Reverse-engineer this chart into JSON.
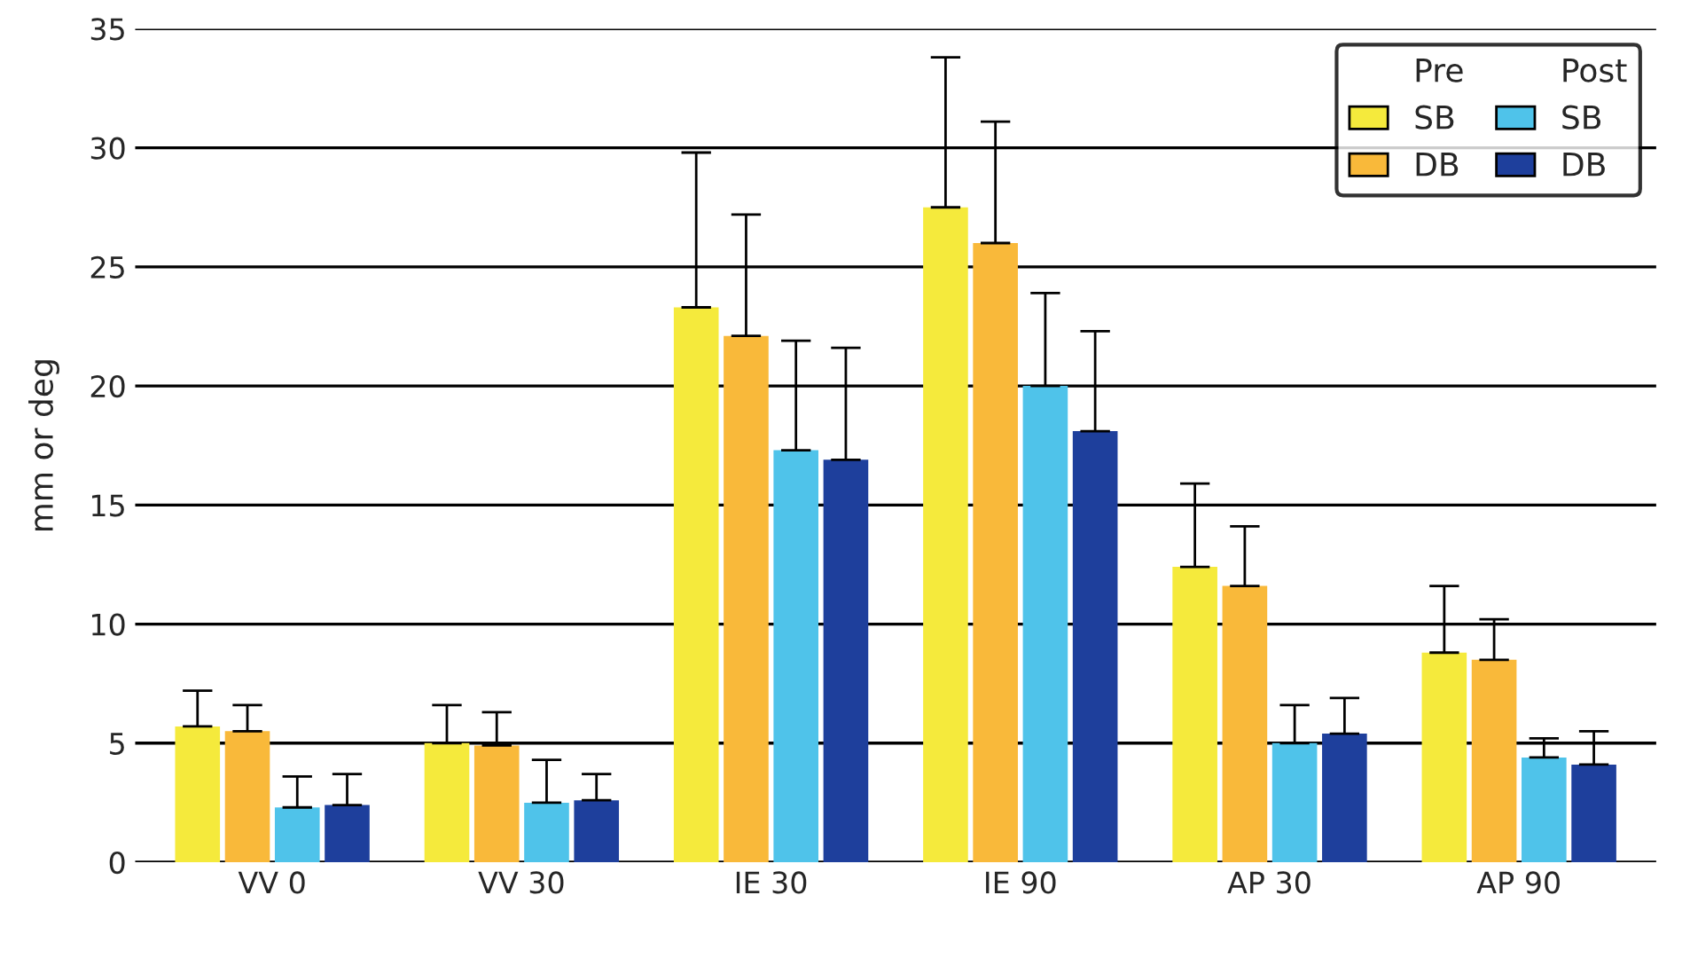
{
  "chart_data": {
    "type": "bar",
    "ylabel": "mm or deg",
    "categories": [
      "VV 0",
      "VV 30",
      "IE 30",
      "IE 90",
      "AP 30",
      "AP 90"
    ],
    "series": [
      {
        "name": "SB",
        "color": "#f5ea3c",
        "values": [
          5.7,
          5.0,
          23.3,
          27.5,
          12.4,
          8.8
        ],
        "errors": [
          [
            5.7,
            7.2
          ],
          [
            5.0,
            6.6
          ],
          [
            23.3,
            29.8
          ],
          [
            27.5,
            33.8
          ],
          [
            12.4,
            15.9
          ],
          [
            8.8,
            11.6
          ]
        ]
      },
      {
        "name": "DB",
        "color": "#f9b93a",
        "values": [
          5.5,
          4.9,
          22.1,
          26.0,
          11.6,
          8.5
        ],
        "errors": [
          [
            5.5,
            6.6
          ],
          [
            4.9,
            6.3
          ],
          [
            22.1,
            27.2
          ],
          [
            26.0,
            31.1
          ],
          [
            11.6,
            14.1
          ],
          [
            8.5,
            10.2
          ]
        ]
      },
      {
        "name": "SB",
        "color": "#4fc3ea",
        "values": [
          2.3,
          2.5,
          17.3,
          20.0,
          5.0,
          4.4
        ],
        "errors": [
          [
            2.3,
            3.6
          ],
          [
            2.5,
            4.3
          ],
          [
            17.3,
            21.9
          ],
          [
            20.0,
            23.9
          ],
          [
            5.0,
            6.6
          ],
          [
            4.4,
            5.2
          ]
        ]
      },
      {
        "name": "DB",
        "color": "#1e3f9c",
        "values": [
          2.4,
          2.6,
          16.9,
          18.1,
          5.4,
          4.1
        ],
        "errors": [
          [
            2.4,
            3.7
          ],
          [
            2.6,
            3.7
          ],
          [
            16.9,
            21.6
          ],
          [
            18.1,
            22.3
          ],
          [
            5.4,
            6.9
          ],
          [
            4.1,
            5.5
          ]
        ]
      }
    ],
    "annotations": [
      "Pre",
      "Post"
    ],
    "ylim": [
      0,
      35
    ],
    "yticks": [
      0,
      5,
      10,
      15,
      20,
      25,
      30,
      35
    ],
    "grid": "y",
    "legend": "top right"
  }
}
